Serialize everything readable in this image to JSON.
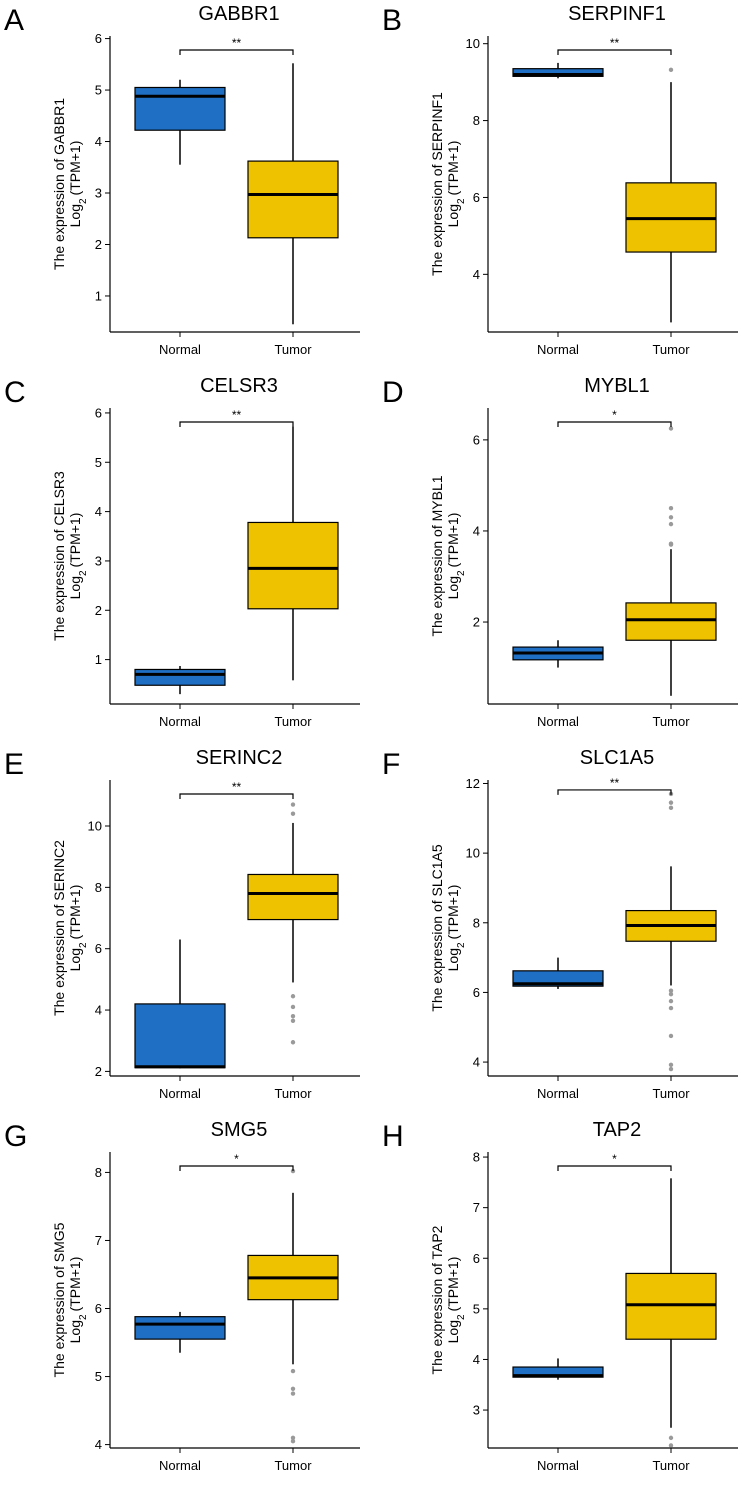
{
  "figure": {
    "ylabel_prefix": "The expression of",
    "ylabel_log": "Log",
    "ylabel_sub": "2",
    "ylabel_unit": "(TPM+1)",
    "colors": {
      "Normal": "#1f6fc4",
      "Tumor": "#efc200",
      "outlier": "#9a9a9a"
    }
  },
  "chart_data": [
    {
      "panel": "A",
      "type": "box",
      "title": "GABBR1",
      "gene": "GABBR1",
      "categories": [
        "Normal",
        "Tumor"
      ],
      "significance": "**",
      "ylim": [
        0.3,
        6.05
      ],
      "yticks": [
        1,
        2,
        3,
        4,
        5,
        6
      ],
      "boxes": [
        {
          "group": "Normal",
          "min": 3.55,
          "q1": 4.22,
          "median": 4.88,
          "q3": 5.05,
          "max": 5.2,
          "outliers": []
        },
        {
          "group": "Tumor",
          "min": 0.45,
          "q1": 2.13,
          "median": 2.97,
          "q3": 3.62,
          "max": 5.52,
          "outliers": []
        }
      ]
    },
    {
      "panel": "B",
      "type": "box",
      "title": "SERPINF1",
      "gene": "SERPINF1",
      "categories": [
        "Normal",
        "Tumor"
      ],
      "significance": "**",
      "ylim": [
        2.5,
        10.2
      ],
      "yticks": [
        4,
        6,
        8,
        10
      ],
      "boxes": [
        {
          "group": "Normal",
          "min": 9.1,
          "q1": 9.15,
          "median": 9.2,
          "q3": 9.35,
          "max": 9.5,
          "outliers": []
        },
        {
          "group": "Tumor",
          "min": 2.75,
          "q1": 4.58,
          "median": 5.45,
          "q3": 6.38,
          "max": 9.0,
          "outliers": [
            9.32
          ]
        }
      ]
    },
    {
      "panel": "C",
      "type": "box",
      "title": "CELSR3",
      "gene": "CELSR3",
      "categories": [
        "Normal",
        "Tumor"
      ],
      "significance": "**",
      "ylim": [
        0.1,
        6.1
      ],
      "yticks": [
        1,
        2,
        3,
        4,
        5,
        6
      ],
      "boxes": [
        {
          "group": "Normal",
          "min": 0.3,
          "q1": 0.48,
          "median": 0.7,
          "q3": 0.8,
          "max": 0.87,
          "outliers": []
        },
        {
          "group": "Tumor",
          "min": 0.58,
          "q1": 2.03,
          "median": 2.85,
          "q3": 3.78,
          "max": 5.72,
          "outliers": []
        }
      ]
    },
    {
      "panel": "D",
      "type": "box",
      "title": "MYBL1",
      "gene": "MYBL1",
      "categories": [
        "Normal",
        "Tumor"
      ],
      "significance": "*",
      "ylim": [
        0.2,
        6.7
      ],
      "yticks": [
        2,
        4,
        6
      ],
      "boxes": [
        {
          "group": "Normal",
          "min": 1.0,
          "q1": 1.17,
          "median": 1.32,
          "q3": 1.45,
          "max": 1.6,
          "outliers": []
        },
        {
          "group": "Tumor",
          "min": 0.38,
          "q1": 1.6,
          "median": 2.05,
          "q3": 2.42,
          "max": 3.6,
          "outliers": [
            3.7,
            3.72,
            4.15,
            4.3,
            4.5,
            6.25
          ]
        }
      ]
    },
    {
      "panel": "E",
      "type": "box",
      "title": "SERINC2",
      "gene": "SERINC2",
      "categories": [
        "Normal",
        "Tumor"
      ],
      "significance": "**",
      "ylim": [
        1.85,
        11.5
      ],
      "yticks": [
        2,
        4,
        6,
        8,
        10
      ],
      "boxes": [
        {
          "group": "Normal",
          "min": 2.1,
          "q1": 2.12,
          "median": 2.15,
          "q3": 4.2,
          "max": 6.3,
          "outliers": []
        },
        {
          "group": "Tumor",
          "min": 4.9,
          "q1": 6.95,
          "median": 7.8,
          "q3": 8.42,
          "max": 10.1,
          "outliers": [
            2.95,
            3.65,
            3.8,
            4.1,
            4.45,
            10.4,
            10.7
          ]
        }
      ]
    },
    {
      "panel": "F",
      "type": "box",
      "title": "SLC1A5",
      "gene": "SLC1A5",
      "categories": [
        "Normal",
        "Tumor"
      ],
      "significance": "**",
      "ylim": [
        3.6,
        12.1
      ],
      "yticks": [
        4,
        6,
        8,
        10,
        12
      ],
      "boxes": [
        {
          "group": "Normal",
          "min": 6.1,
          "q1": 6.18,
          "median": 6.25,
          "q3": 6.62,
          "max": 7.0,
          "outliers": []
        },
        {
          "group": "Tumor",
          "min": 6.2,
          "q1": 7.47,
          "median": 7.92,
          "q3": 8.35,
          "max": 9.62,
          "outliers": [
            3.8,
            3.92,
            4.75,
            5.55,
            5.75,
            5.95,
            6.05,
            11.3,
            11.45,
            11.7
          ]
        }
      ]
    },
    {
      "panel": "G",
      "type": "box",
      "title": "SMG5",
      "gene": "SMG5",
      "categories": [
        "Normal",
        "Tumor"
      ],
      "significance": "*",
      "ylim": [
        3.95,
        8.3
      ],
      "yticks": [
        4,
        5,
        6,
        7,
        8
      ],
      "boxes": [
        {
          "group": "Normal",
          "min": 5.35,
          "q1": 5.55,
          "median": 5.77,
          "q3": 5.88,
          "max": 5.95,
          "outliers": []
        },
        {
          "group": "Tumor",
          "min": 5.18,
          "q1": 6.13,
          "median": 6.45,
          "q3": 6.78,
          "max": 7.7,
          "outliers": [
            4.05,
            4.1,
            4.75,
            4.82,
            5.08,
            8.02
          ]
        }
      ]
    },
    {
      "panel": "H",
      "type": "box",
      "title": "TAP2",
      "gene": "TAP2",
      "categories": [
        "Normal",
        "Tumor"
      ],
      "significance": "*",
      "ylim": [
        2.25,
        8.1
      ],
      "yticks": [
        3,
        4,
        5,
        6,
        7,
        8
      ],
      "boxes": [
        {
          "group": "Normal",
          "min": 3.6,
          "q1": 3.65,
          "median": 3.68,
          "q3": 3.85,
          "max": 4.02,
          "outliers": []
        },
        {
          "group": "Tumor",
          "min": 2.65,
          "q1": 4.4,
          "median": 5.08,
          "q3": 5.7,
          "max": 7.58,
          "outliers": [
            2.3,
            2.45
          ]
        }
      ]
    }
  ]
}
